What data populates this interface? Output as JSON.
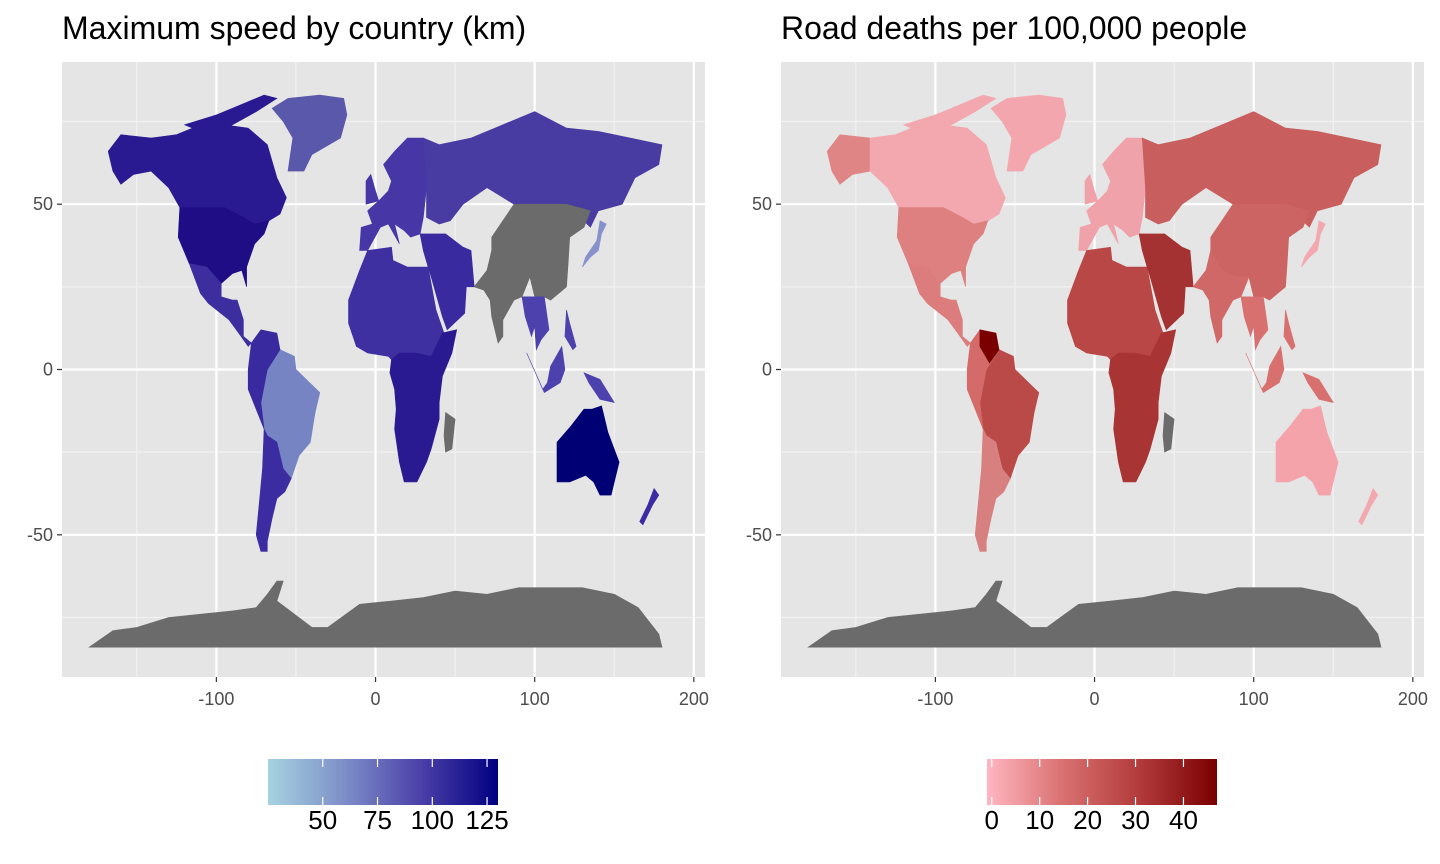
{
  "panels": [
    {
      "id": "speed",
      "title": "Maximum speed by country (km)",
      "x_ticks": [
        "-100",
        "0",
        "100",
        "200"
      ],
      "y_ticks": [
        "50",
        "0",
        "-50"
      ],
      "legend": {
        "colors": [
          "#a6d3e0",
          "#7d8ec8",
          "#4b3fa8",
          "#000080"
        ],
        "tick_labels": [
          "50",
          "75",
          "100",
          "125"
        ],
        "range": [
          25,
          130
        ]
      },
      "fill_colors": {
        "north_america": "#2b1a8f",
        "united_states": "#1f0d86",
        "canada": "#2a1a91",
        "alaska": "#2a1a91",
        "greenland": "#5a58ab",
        "mexico_central": "#3d2ea0",
        "south_america_east": "#7784c4",
        "south_america_west": "#3a2aa0",
        "argentina_chile": "#3c2ca2",
        "europe": "#4636a6",
        "russia": "#483ba2",
        "africa_north": "#3f30a2",
        "africa_south": "#2a1a91",
        "middle_east": "#3a2aa0",
        "china": "#6b6b6b",
        "india": "#6b6b6b",
        "southeast_asia": "#4d42ad",
        "japan": "#8791cc",
        "australia": "#000075",
        "new_zealand": "#3b2ba4",
        "antarctica": "#6b6b6b",
        "missing": "#6b6b6b"
      }
    },
    {
      "id": "deaths",
      "title": "Road deaths per 100,000 people",
      "x_ticks": [
        "-100",
        "0",
        "100",
        "200"
      ],
      "y_ticks": [
        "50",
        "0",
        "-50"
      ],
      "legend": {
        "colors": [
          "#ffb6c1",
          "#d87070",
          "#b23a3a",
          "#7a0000"
        ],
        "tick_labels": [
          "0",
          "10",
          "20",
          "30",
          "40"
        ],
        "range": [
          -1,
          47
        ]
      },
      "fill_colors": {
        "north_america": "#e08585",
        "united_states": "#de8080",
        "canada": "#f2a8ae",
        "alaska": "#e08585",
        "greenland": "#f4a6ae",
        "mexico_central": "#dc7c7c",
        "south_america_east": "#b94a48",
        "south_america_west": "#d46a6a",
        "argentina_chile": "#d88080",
        "europe": "#f0a2aa",
        "russia": "#c85e5e",
        "africa_north": "#b84746",
        "africa_south": "#a83434",
        "middle_east": "#a53232",
        "china": "#cc6464",
        "india": "#d06868",
        "southeast_asia": "#d87070",
        "japan": "#f2a8ae",
        "australia": "#f4a3ab",
        "new_zealand": "#f2a8ae",
        "venezuela": "#7a0000",
        "antarctica": "#6b6b6b",
        "missing": "#6b6b6b"
      }
    }
  ],
  "map_style": {
    "panel_background": "#e5e5e5",
    "grid_major": "#ffffff",
    "grid_minor": "#f2f2f2",
    "antarctica": "#6b6b6b"
  }
}
